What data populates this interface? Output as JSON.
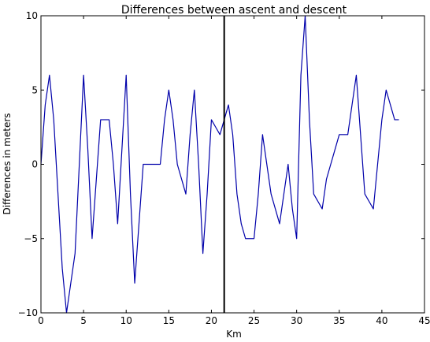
{
  "chart_data": {
    "type": "line",
    "title": "Differences between ascent and descent",
    "xlabel": "Km",
    "ylabel": "Differences in meters",
    "xlim": [
      0,
      45
    ],
    "ylim": [
      -10,
      10
    ],
    "x_ticks": [
      0,
      5,
      10,
      15,
      20,
      25,
      30,
      35,
      40,
      45
    ],
    "y_ticks": [
      -10,
      -5,
      0,
      5,
      10
    ],
    "x_tick_labels": [
      "0",
      "5",
      "10",
      "15",
      "20",
      "25",
      "30",
      "35",
      "40",
      "45"
    ],
    "y_tick_labels": [
      "−10",
      "−5",
      "0",
      "5",
      "10"
    ],
    "grid": false,
    "series": [
      {
        "color": "#0000aa",
        "x": [
          0,
          0.5,
          1,
          1.5,
          2,
          2.5,
          3,
          3.5,
          4,
          4.5,
          5,
          5.5,
          6,
          6.5,
          7,
          7.5,
          8,
          8.5,
          9,
          9.5,
          10,
          10.5,
          11,
          11.5,
          12,
          12.5,
          13,
          13.5,
          14,
          14.5,
          15,
          15.5,
          16,
          16.5,
          17,
          17.5,
          18,
          18.5,
          19,
          19.5,
          20,
          20.5,
          21,
          21.5,
          22,
          22.5,
          23,
          23.5,
          24,
          24.5,
          25,
          25.5,
          26,
          26.5,
          27,
          27.5,
          28,
          28.5,
          29,
          29.5,
          30,
          30.5,
          31,
          31.5,
          32,
          32.5,
          33,
          33.5,
          34,
          34.5,
          35,
          35.5,
          36,
          36.5,
          37,
          37.5,
          38,
          38.5,
          39,
          39.5,
          40,
          40.5,
          41,
          41.5,
          42
        ],
        "y": [
          0,
          4,
          6,
          3,
          -2,
          -7,
          -10,
          -8,
          -6,
          0,
          6,
          1,
          -5,
          -1,
          3,
          3,
          3,
          0,
          -4,
          1,
          6,
          -2,
          -8,
          -4,
          0,
          0,
          0,
          0,
          0,
          3,
          5,
          3,
          0,
          -1,
          -2,
          2,
          5,
          0,
          -6,
          -2,
          3,
          2.5,
          2,
          3,
          4,
          2,
          -2,
          -4,
          -5,
          -5,
          -5,
          -2,
          2,
          0,
          -2,
          -3,
          -4,
          -2,
          0,
          -3,
          -5,
          6,
          10,
          3,
          -2,
          -2.5,
          -3,
          -1,
          0,
          1,
          2,
          2,
          2,
          4,
          6,
          2,
          -2,
          -2.5,
          -3,
          0,
          3,
          5,
          4,
          3,
          3
        ]
      }
    ],
    "vline_x": 21.5,
    "vline_color": "#000000"
  }
}
